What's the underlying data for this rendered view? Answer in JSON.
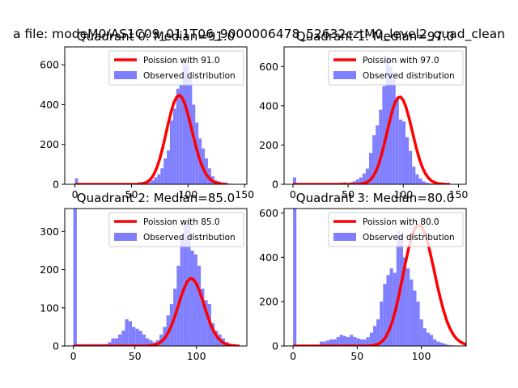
{
  "suptitle": "a file: modeM0/AS1C09_011T06_9000006478_52632cztM0_level2_quad_clean",
  "colors": {
    "hist": "#8080ff",
    "fit": "#ff0000",
    "axes": "#000000"
  },
  "chart_data": [
    {
      "type": "bar",
      "title": "Quadrant 0: Median=91.0",
      "median": 91.0,
      "legend": [
        "Poission with 91.0",
        "Observed distribution"
      ],
      "legend_loc": "upper right",
      "xlim": [
        -9,
        152
      ],
      "ylim": [
        0,
        690
      ],
      "xticks": [
        0,
        50,
        100,
        150
      ],
      "yticks": [
        0,
        200,
        400,
        600
      ],
      "hist_x0": 0,
      "bin_width": 2.8,
      "counts": [
        30,
        5,
        5,
        5,
        5,
        5,
        5,
        5,
        5,
        5,
        5,
        5,
        5,
        5,
        5,
        5,
        5,
        5,
        5,
        5,
        10,
        10,
        5,
        10,
        20,
        35,
        50,
        80,
        130,
        170,
        320,
        380,
        480,
        500,
        610,
        600,
        540,
        400,
        310,
        230,
        180,
        130,
        80,
        40,
        20,
        15,
        8,
        5,
        3,
        3,
        2
      ],
      "fit": [
        0,
        0,
        0,
        0,
        0,
        0,
        0,
        0,
        0,
        0,
        0,
        0,
        0,
        0,
        0,
        0,
        0,
        0,
        0,
        0,
        0,
        0,
        0,
        2,
        4,
        8,
        16,
        30,
        52,
        85,
        128,
        182,
        243,
        306,
        364,
        411,
        439,
        447,
        433,
        399,
        350,
        293,
        234,
        179,
        130,
        91,
        60,
        38,
        23,
        13,
        7,
        4,
        2,
        1,
        0
      ]
    },
    {
      "type": "bar",
      "title": "Quadrant 1: Median=97.0",
      "median": 97.0,
      "legend": [
        "Poission with 97.0",
        "Observed distribution"
      ],
      "legend_loc": "upper right",
      "xlim": [
        -8,
        157
      ],
      "ylim": [
        0,
        700
      ],
      "xticks": [
        0,
        50,
        100,
        150
      ],
      "yticks": [
        0,
        200,
        400,
        600
      ],
      "hist_x0": 0,
      "bin_width": 3.0,
      "counts": [
        35,
        5,
        5,
        5,
        5,
        5,
        5,
        5,
        5,
        5,
        5,
        5,
        5,
        5,
        8,
        10,
        5,
        10,
        15,
        25,
        35,
        55,
        80,
        160,
        250,
        300,
        380,
        500,
        650,
        600,
        550,
        440,
        330,
        320,
        240,
        170,
        90,
        50,
        30,
        15,
        8,
        5,
        3,
        2,
        2,
        2,
        1,
        1,
        1,
        1,
        1
      ],
      "fit": [
        0,
        0,
        0,
        0,
        0,
        0,
        0,
        0,
        0,
        0,
        0,
        0,
        0,
        0,
        0,
        0,
        0,
        0,
        0,
        0,
        0,
        0,
        0,
        0,
        1,
        3,
        6,
        12,
        22,
        39,
        64,
        99,
        145,
        199,
        258,
        318,
        373,
        416,
        440,
        445,
        428,
        392,
        343,
        285,
        226,
        171,
        122,
        84,
        55,
        34,
        20,
        11,
        6,
        3,
        2,
        1,
        0,
        0
      ]
    },
    {
      "type": "bar",
      "title": "Quadrant 2: Median=85.0",
      "median": 85.0,
      "legend": [
        "Poission with 85.0",
        "Observed distribution"
      ],
      "legend_loc": "upper right",
      "xlim": [
        -7,
        141
      ],
      "ylim": [
        0,
        360
      ],
      "xticks": [
        0,
        50,
        100
      ],
      "yticks": [
        0,
        100,
        200,
        300
      ],
      "hist_x0": 0,
      "bin_width": 2.8,
      "counts": [
        360,
        5,
        5,
        5,
        5,
        5,
        5,
        5,
        5,
        5,
        10,
        20,
        20,
        30,
        40,
        70,
        65,
        50,
        45,
        40,
        30,
        20,
        15,
        10,
        15,
        30,
        50,
        80,
        110,
        150,
        210,
        290,
        320,
        330,
        250,
        240,
        210,
        150,
        120,
        110,
        60,
        40,
        30,
        20,
        10,
        5,
        3,
        2,
        1,
        1
      ],
      "fit": [
        0,
        0,
        0,
        0,
        0,
        0,
        0,
        0,
        0,
        0,
        0,
        0,
        0,
        0,
        0,
        0,
        0,
        0,
        0,
        0,
        0,
        0,
        0,
        0,
        0,
        1,
        2,
        4,
        8,
        14,
        24,
        38,
        56,
        78,
        103,
        129,
        151,
        169,
        177,
        175,
        163,
        144,
        120,
        94,
        70,
        49,
        33,
        21,
        13,
        7,
        4,
        2,
        1,
        0,
        0
      ]
    },
    {
      "type": "bar",
      "title": "Quadrant 3: Median=80.0",
      "median": 80.0,
      "legend": [
        "Poission with 80.0",
        "Observed distribution"
      ],
      "legend_loc": "upper right",
      "xlim": [
        -7,
        135
      ],
      "ylim": [
        0,
        620
      ],
      "xticks": [
        0,
        50,
        100
      ],
      "yticks": [
        0,
        200,
        400,
        600
      ],
      "hist_x0": 0,
      "bin_width": 2.6,
      "counts": [
        620,
        5,
        5,
        5,
        5,
        5,
        5,
        5,
        20,
        20,
        25,
        30,
        30,
        40,
        50,
        45,
        40,
        50,
        40,
        35,
        30,
        30,
        40,
        60,
        90,
        120,
        200,
        280,
        320,
        350,
        330,
        520,
        500,
        400,
        350,
        300,
        250,
        200,
        120,
        80,
        60,
        50,
        30,
        20,
        15,
        10,
        5,
        3,
        2,
        1
      ],
      "fit": [
        0,
        0,
        0,
        0,
        0,
        0,
        0,
        0,
        0,
        0,
        0,
        0,
        0,
        0,
        0,
        0,
        0,
        0,
        0,
        0,
        0,
        0,
        0,
        0,
        1,
        3,
        6,
        12,
        24,
        43,
        72,
        112,
        165,
        228,
        299,
        371,
        437,
        492,
        530,
        546,
        540,
        512,
        466,
        406,
        340,
        273,
        211,
        157,
        112,
        77,
        51,
        32,
        20,
        12,
        7,
        4,
        2,
        1,
        0
      ]
    }
  ]
}
